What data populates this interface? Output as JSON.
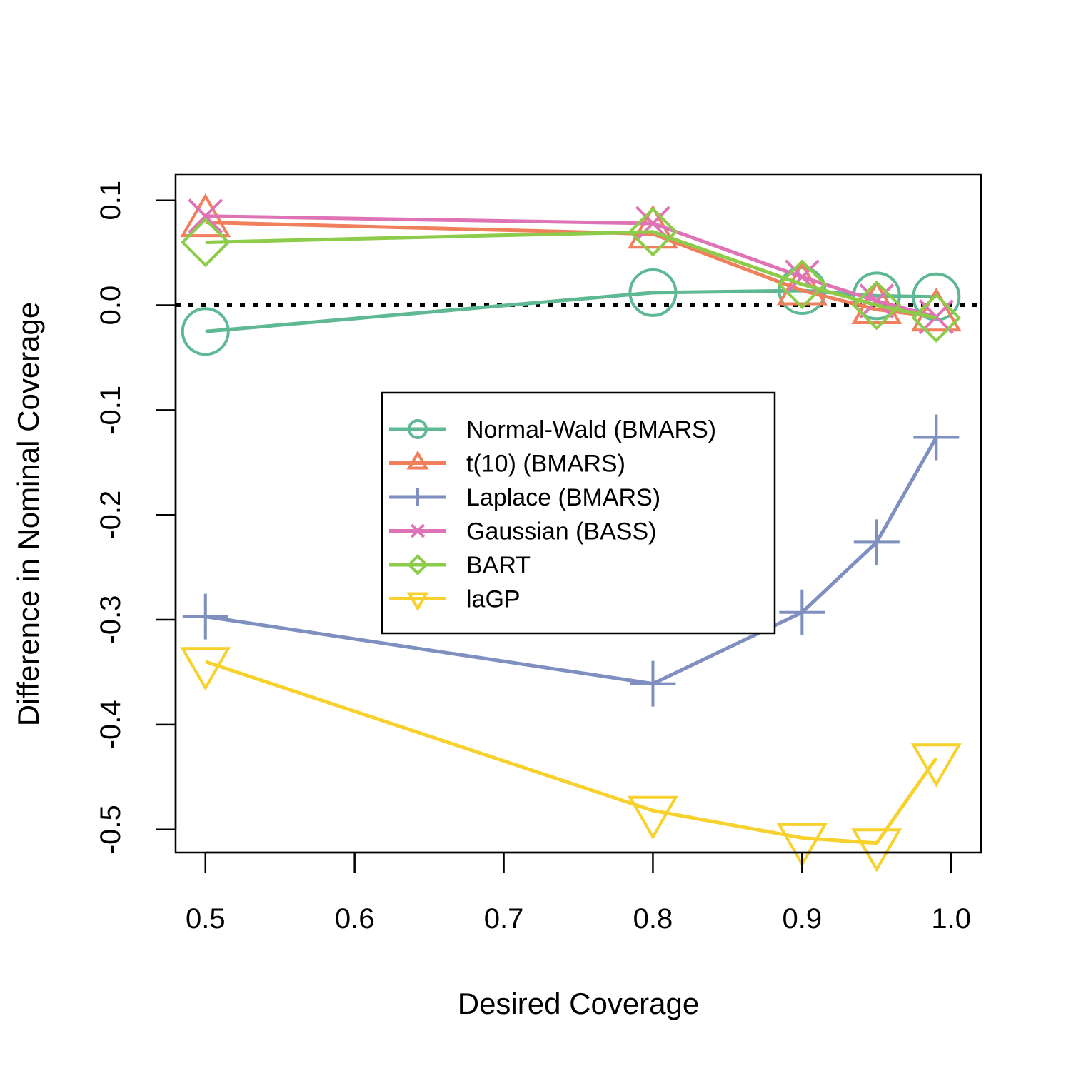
{
  "chart_data": {
    "type": "line",
    "title": "",
    "xlabel": "Desired Coverage",
    "ylabel": "Difference in Nominal Coverage",
    "xlim": [
      0.48,
      1.02
    ],
    "ylim": [
      -0.522,
      0.125
    ],
    "x_ticks": [
      0.5,
      0.6,
      0.7,
      0.8,
      0.9,
      1.0
    ],
    "x_tick_labels": [
      "0.5",
      "0.6",
      "0.7",
      "0.8",
      "0.9",
      "1.0"
    ],
    "y_ticks": [
      0.1,
      0.0,
      -0.1,
      -0.2,
      -0.3,
      -0.4,
      -0.5
    ],
    "y_tick_labels": [
      "0.1",
      "0.0",
      "-0.1",
      "-0.2",
      "-0.3",
      "-0.4",
      "-0.5"
    ],
    "reference_line": {
      "y": 0,
      "style": "dotted",
      "color": "#000000"
    },
    "x": [
      0.5,
      0.8,
      0.9,
      0.95,
      0.99
    ],
    "grid": false,
    "legend_position": "center",
    "series": [
      {
        "name": "Normal-Wald (BMARS)",
        "color": "#5FB894",
        "marker": "circle",
        "values": [
          -0.025,
          0.012,
          0.014,
          0.009,
          0.008
        ]
      },
      {
        "name": "t(10) (BMARS)",
        "color": "#F07F5C",
        "marker": "triangle-up",
        "values": [
          0.079,
          0.068,
          0.014,
          -0.004,
          -0.011
        ]
      },
      {
        "name": "Laplace (BMARS)",
        "color": "#7E8FC0",
        "marker": "plus",
        "values": [
          -0.297,
          -0.361,
          -0.293,
          -0.226,
          -0.126
        ]
      },
      {
        "name": "Gaussian (BASS)",
        "color": "#DE73B6",
        "marker": "cross",
        "values": [
          0.085,
          0.078,
          0.027,
          0.004,
          -0.011
        ]
      },
      {
        "name": "BART",
        "color": "#8DCB4A",
        "marker": "diamond",
        "values": [
          0.06,
          0.07,
          0.02,
          0.0,
          -0.012
        ]
      },
      {
        "name": "laGP",
        "color": "#F7D12E",
        "marker": "triangle-down",
        "values": [
          -0.34,
          -0.482,
          -0.508,
          -0.513,
          -0.432
        ]
      }
    ]
  }
}
